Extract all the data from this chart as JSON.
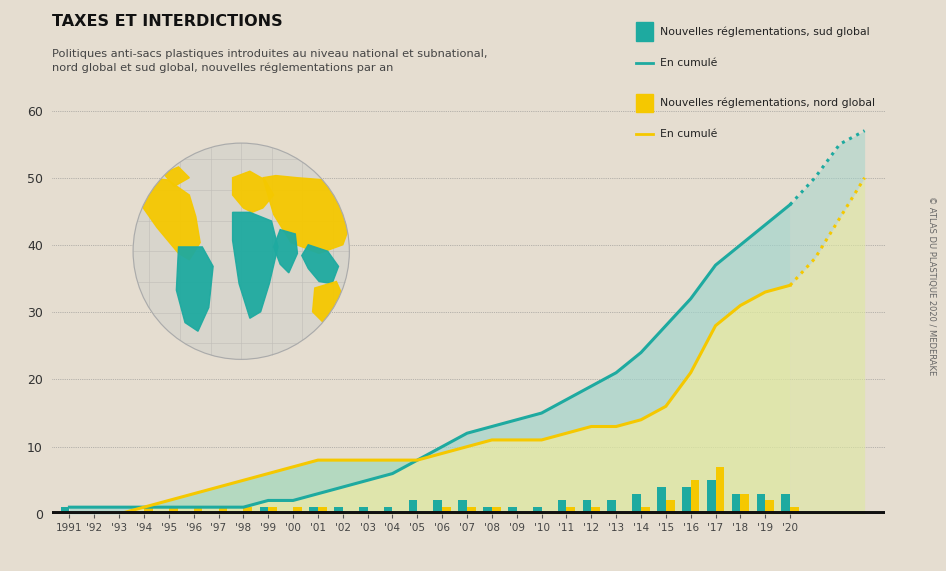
{
  "title": "TAXES ET INTERDICTIONS",
  "subtitle": "Politiques anti-sacs plastiques introduites au niveau national et subnational,\nnord global et sud global, nouvelles réglementations par an",
  "bg_color": "#e5ddd0",
  "years": [
    1991,
    1992,
    1993,
    1994,
    1995,
    1996,
    1997,
    1998,
    1999,
    2000,
    2001,
    2002,
    2003,
    2004,
    2005,
    2006,
    2007,
    2008,
    2009,
    2010,
    2011,
    2012,
    2013,
    2014,
    2015,
    2016,
    2017,
    2018,
    2019,
    2020
  ],
  "bars_sud": [
    1,
    0,
    0,
    0,
    0,
    0,
    0,
    0,
    1,
    0,
    1,
    1,
    1,
    1,
    2,
    2,
    2,
    1,
    1,
    1,
    2,
    2,
    2,
    3,
    4,
    4,
    5,
    3,
    3,
    3
  ],
  "bars_nord": [
    0,
    0,
    0,
    1,
    1,
    1,
    1,
    1,
    1,
    1,
    1,
    0,
    0,
    0,
    0,
    1,
    1,
    1,
    0,
    0,
    1,
    1,
    0,
    1,
    2,
    5,
    7,
    3,
    2,
    1
  ],
  "cum_sud": [
    1,
    1,
    1,
    1,
    1,
    1,
    1,
    1,
    2,
    2,
    3,
    4,
    5,
    6,
    8,
    10,
    12,
    13,
    14,
    15,
    17,
    19,
    21,
    24,
    28,
    32,
    37,
    40,
    43,
    46
  ],
  "cum_nord": [
    0,
    0,
    0,
    1,
    2,
    3,
    4,
    5,
    6,
    7,
    8,
    8,
    8,
    8,
    8,
    9,
    10,
    11,
    11,
    11,
    12,
    13,
    13,
    14,
    16,
    21,
    28,
    31,
    33,
    34
  ],
  "cum_sud_ext": [
    46,
    50,
    55,
    57
  ],
  "cum_nord_ext": [
    34,
    38,
    44,
    50
  ],
  "ext_years": [
    2020,
    2021,
    2022,
    2023
  ],
  "color_sud": "#1eaaa0",
  "color_nord": "#f5c800",
  "color_sud_fill": "#9ed4cc",
  "color_nord_fill": "#dde8a0",
  "ylim": [
    0,
    62
  ],
  "yticks": [
    0,
    10,
    20,
    30,
    40,
    50,
    60
  ],
  "legend_sud_label": "Nouvelles réglementations, sud global",
  "legend_sud_cumul": "En cumulé",
  "legend_nord_label": "Nouvelles réglementations, nord global",
  "legend_nord_cumul": "En cumulé",
  "credit": "© ATLAS DU PLASTIQUE 2020 / MEDERAKE"
}
